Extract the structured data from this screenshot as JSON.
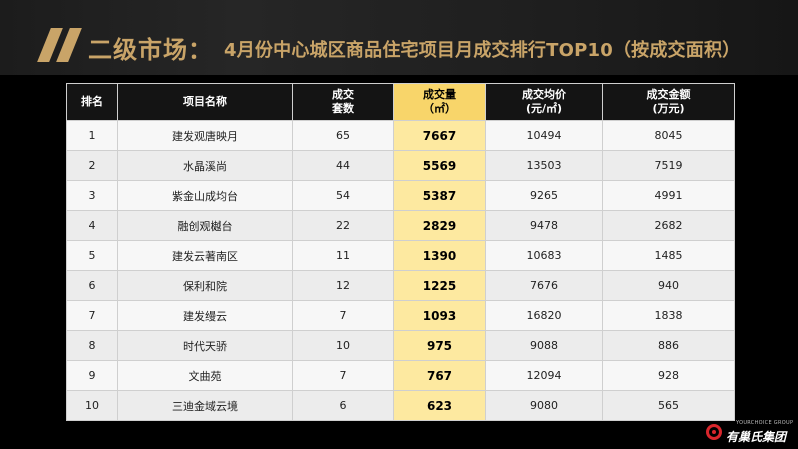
{
  "header": {
    "title_main": "二级市场：",
    "title_sub": "4月份中心城区商品住宅项目月成交排行TOP10（按成交面积）"
  },
  "table": {
    "columns": [
      {
        "line1": "排名",
        "line2": ""
      },
      {
        "line1": "项目名称",
        "line2": ""
      },
      {
        "line1": "成交",
        "line2": "套数"
      },
      {
        "line1": "成交量",
        "line2": "（㎡）"
      },
      {
        "line1": "成交均价",
        "line2": "(元/㎡)"
      },
      {
        "line1": "成交金额",
        "line2": "(万元)"
      }
    ],
    "rows": [
      {
        "rank": "1",
        "name": "建发观唐映月",
        "units": "65",
        "area": "7667",
        "price": "10494",
        "amount": "8045"
      },
      {
        "rank": "2",
        "name": "水晶溪尚",
        "units": "44",
        "area": "5569",
        "price": "13503",
        "amount": "7519"
      },
      {
        "rank": "3",
        "name": "紫金山成均台",
        "units": "54",
        "area": "5387",
        "price": "9265",
        "amount": "4991"
      },
      {
        "rank": "4",
        "name": "融创观樾台",
        "units": "22",
        "area": "2829",
        "price": "9478",
        "amount": "2682"
      },
      {
        "rank": "5",
        "name": "建发云著南区",
        "units": "11",
        "area": "1390",
        "price": "10683",
        "amount": "1485"
      },
      {
        "rank": "6",
        "name": "保利和院",
        "units": "12",
        "area": "1225",
        "price": "7676",
        "amount": "940"
      },
      {
        "rank": "7",
        "name": "建发缦云",
        "units": "7",
        "area": "1093",
        "price": "16820",
        "amount": "1838"
      },
      {
        "rank": "8",
        "name": "时代天骄",
        "units": "10",
        "area": "975",
        "price": "9088",
        "amount": "886"
      },
      {
        "rank": "9",
        "name": "文曲苑",
        "units": "7",
        "area": "767",
        "price": "12094",
        "amount": "928"
      },
      {
        "rank": "10",
        "name": "三迪金域云境",
        "units": "6",
        "area": "623",
        "price": "9080",
        "amount": "565"
      }
    ]
  },
  "logo": {
    "en": "YOURCHOICE GROUP",
    "cn": "有巢氏集团",
    "icon": "brand-circle-icon",
    "color": "#d8262c"
  },
  "colors": {
    "accent_gold": "#c9a468",
    "highlight_header": "#f8d56a",
    "highlight_cell": "#fde9a0"
  }
}
